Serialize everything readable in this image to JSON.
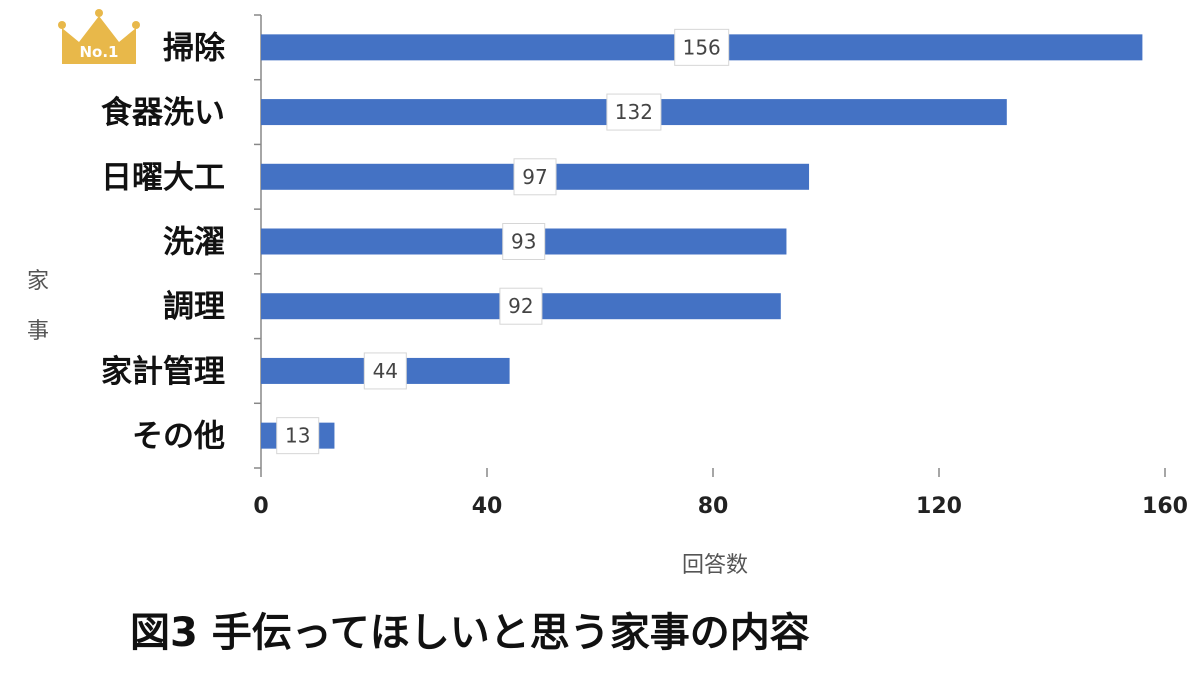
{
  "chart_data": {
    "type": "bar",
    "orientation": "horizontal",
    "categories": [
      "掃除",
      "食器洗い",
      "日曜大工",
      "洗濯",
      "調理",
      "家計管理",
      "その他"
    ],
    "values": [
      156,
      132,
      97,
      93,
      92,
      44,
      13
    ],
    "data_labels": [
      "156",
      "132",
      "97",
      "93",
      "92",
      "44",
      "13"
    ],
    "xticks": [
      "0",
      "40",
      "80",
      "120",
      "160"
    ],
    "xlim": [
      0,
      160
    ],
    "xlabel": "回答数",
    "ylabel": [
      "家",
      "事"
    ],
    "title": "図3 手伝ってほしいと思う家事の内容",
    "grid": false,
    "bar_color": "#4472c4",
    "badge": {
      "text": "No.1",
      "color": "#e8b84a",
      "icon": "crown-icon"
    }
  }
}
